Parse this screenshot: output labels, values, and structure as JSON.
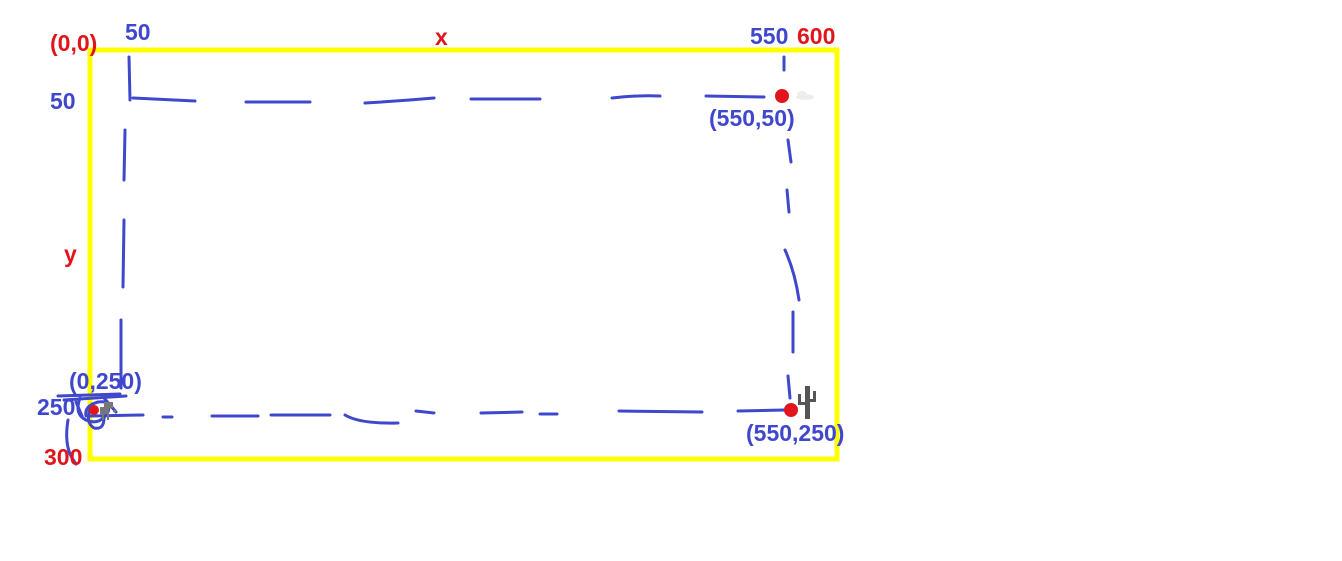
{
  "labels": {
    "origin": "(0,0)",
    "x_axis": "x",
    "y_axis": "y",
    "x_50": "50",
    "x_550": "550",
    "x_600": "600",
    "y_50": "50",
    "y_250": "250",
    "y_300": "300",
    "point_top_left": "(0,250)",
    "point_top_right": "(550,50)",
    "point_bottom_right": "(550,250)"
  },
  "colors": {
    "border": "#ffff00",
    "path": "#3f48cc",
    "label_red": "#e0161c",
    "label_blue": "#3f48cc",
    "marker": "#e0161c",
    "cactus": "#555555",
    "cloud": "#e8e8e8"
  },
  "icons": {
    "dino": "dinosaur-icon",
    "cactus": "cactus-icon",
    "cloud": "cloud-icon"
  }
}
